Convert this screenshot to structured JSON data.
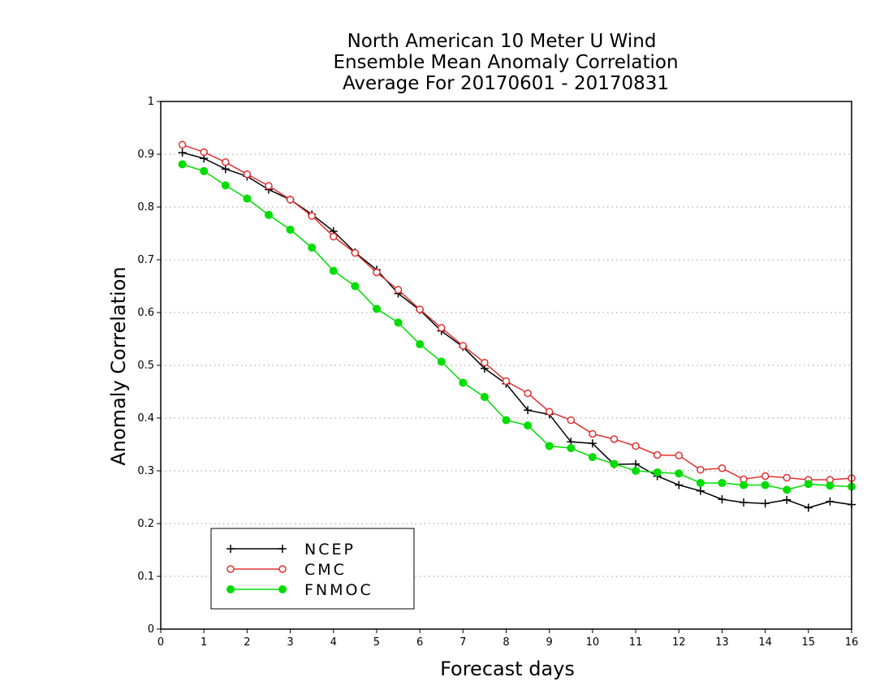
{
  "chart_data": {
    "type": "line",
    "title": [
      "North American 10 Meter U Wind",
      "Ensemble Mean Anomaly Correlation",
      "Average For 20170601 - 20170831"
    ],
    "xlabel": "Forecast days",
    "ylabel": "Anomaly Correlation",
    "xlim": [
      0,
      16
    ],
    "ylim": [
      0,
      1
    ],
    "x_ticks": [
      0,
      1,
      2,
      3,
      4,
      5,
      6,
      7,
      8,
      9,
      10,
      11,
      12,
      13,
      14,
      15,
      16
    ],
    "y_ticks": [
      0,
      0.1,
      0.2,
      0.3,
      0.4,
      0.5,
      0.6,
      0.7,
      0.8,
      0.9,
      1
    ],
    "grid": "horizontal dotted",
    "legend_position": "bottom-left",
    "x": [
      0.5,
      1,
      1.5,
      2,
      2.5,
      3,
      3.5,
      4,
      4.5,
      5,
      5.5,
      6,
      6.5,
      7,
      7.5,
      8,
      8.5,
      9,
      9.5,
      10,
      10.5,
      11,
      11.5,
      12,
      12.5,
      13,
      13.5,
      14,
      14.5,
      15,
      15.5,
      16
    ],
    "series": [
      {
        "name": "NCEP",
        "color": "#000000",
        "marker": "plus",
        "values": [
          0.903,
          0.892,
          0.872,
          0.858,
          0.833,
          0.814,
          0.786,
          0.754,
          0.714,
          0.681,
          0.636,
          0.605,
          0.565,
          0.535,
          0.494,
          0.465,
          0.415,
          0.407,
          0.355,
          0.352,
          0.312,
          0.313,
          0.29,
          0.273,
          0.262,
          0.246,
          0.24,
          0.238,
          0.245,
          0.23,
          0.242,
          0.236
        ]
      },
      {
        "name": "CMC",
        "color": "#e03030",
        "marker": "open-circle",
        "values": [
          0.918,
          0.904,
          0.885,
          0.862,
          0.84,
          0.814,
          0.783,
          0.744,
          0.713,
          0.676,
          0.643,
          0.606,
          0.571,
          0.537,
          0.505,
          0.47,
          0.447,
          0.412,
          0.396,
          0.37,
          0.36,
          0.347,
          0.33,
          0.329,
          0.302,
          0.305,
          0.284,
          0.29,
          0.287,
          0.283,
          0.283,
          0.286
        ]
      },
      {
        "name": "FNMOC",
        "color": "#00dd00",
        "marker": "filled-circle",
        "values": [
          0.881,
          0.868,
          0.841,
          0.816,
          0.785,
          0.757,
          0.723,
          0.679,
          0.65,
          0.607,
          0.581,
          0.54,
          0.507,
          0.467,
          0.44,
          0.396,
          0.386,
          0.347,
          0.343,
          0.326,
          0.313,
          0.3,
          0.297,
          0.295,
          0.277,
          0.277,
          0.273,
          0.273,
          0.264,
          0.275,
          0.272,
          0.27
        ]
      }
    ]
  }
}
